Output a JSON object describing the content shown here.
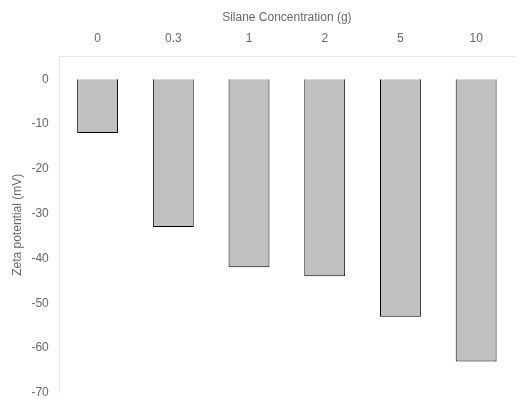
{
  "chart_data": {
    "type": "bar",
    "xlabel": "Silane Concentration (g)",
    "ylabel": "Zeta potential (mV)",
    "categories": [
      "0",
      "0.3",
      "1",
      "2",
      "5",
      "10"
    ],
    "values": [
      -12,
      -33,
      -42,
      -44,
      -53,
      -63
    ],
    "color": "#c0c0c0",
    "ylim": [
      -70,
      5
    ],
    "yticks": [
      0,
      -10,
      -20,
      -30,
      -40,
      -50,
      -60,
      -70
    ],
    "grid": false
  }
}
